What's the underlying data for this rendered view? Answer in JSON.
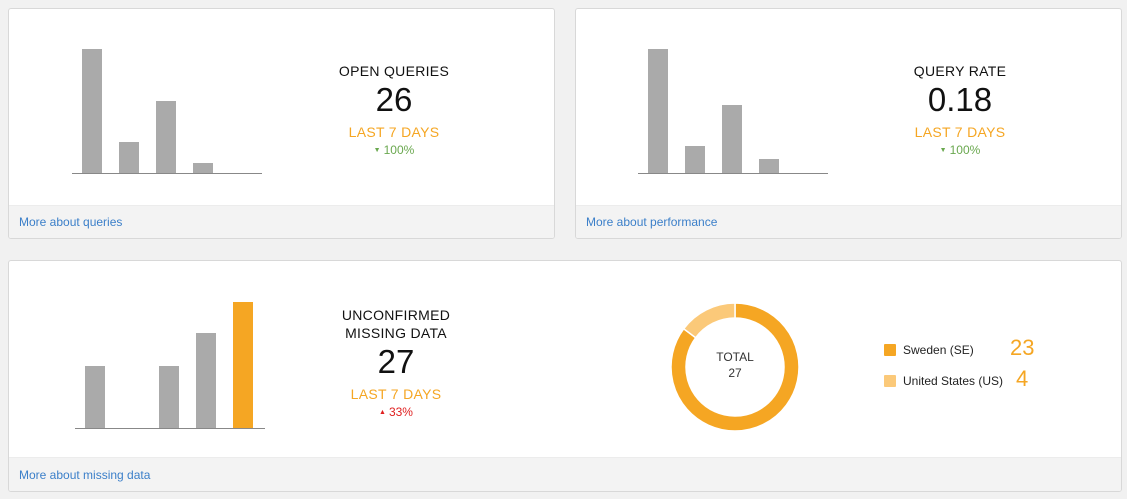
{
  "colors": {
    "bar_gray": "#aaaaaa",
    "accent": "#f5a623",
    "accent_light": "#fbc979",
    "positive": "#6aa84f",
    "negative": "#e02020",
    "link": "#3b7fc9"
  },
  "cards": [
    {
      "title": "OPEN QUERIES",
      "value": "26",
      "period": "LAST 7 DAYS",
      "change": "100%",
      "change_direction": "down",
      "link": "More about queries",
      "chart_values": [
        1.0,
        0.25,
        0.58,
        0.08
      ]
    },
    {
      "title": "QUERY RATE",
      "value": "0.18",
      "period": "LAST 7 DAYS",
      "change": "100%",
      "change_direction": "down",
      "link": "More about performance",
      "chart_values": [
        1.0,
        0.22,
        0.55,
        0.11
      ]
    },
    {
      "title_line1": "UNCONFIRMED",
      "title_line2": "MISSING DATA",
      "value": "27",
      "period": "LAST 7 DAYS",
      "change": "33%",
      "change_direction": "up",
      "link": "More about missing data",
      "chart_values": [
        0.49,
        0,
        0.49,
        0.75,
        1.0
      ],
      "highlight_index": 4
    }
  ],
  "donut": {
    "total_label": "TOTAL",
    "total_value": "27",
    "segments": [
      {
        "label": "Sweden (SE)",
        "value": 23,
        "value_text": "23"
      },
      {
        "label": "United States (US)",
        "value": 4,
        "value_text": "4"
      }
    ]
  },
  "icons": {
    "down_arrow": "triangle-down-icon",
    "up_arrow": "triangle-up-icon"
  }
}
